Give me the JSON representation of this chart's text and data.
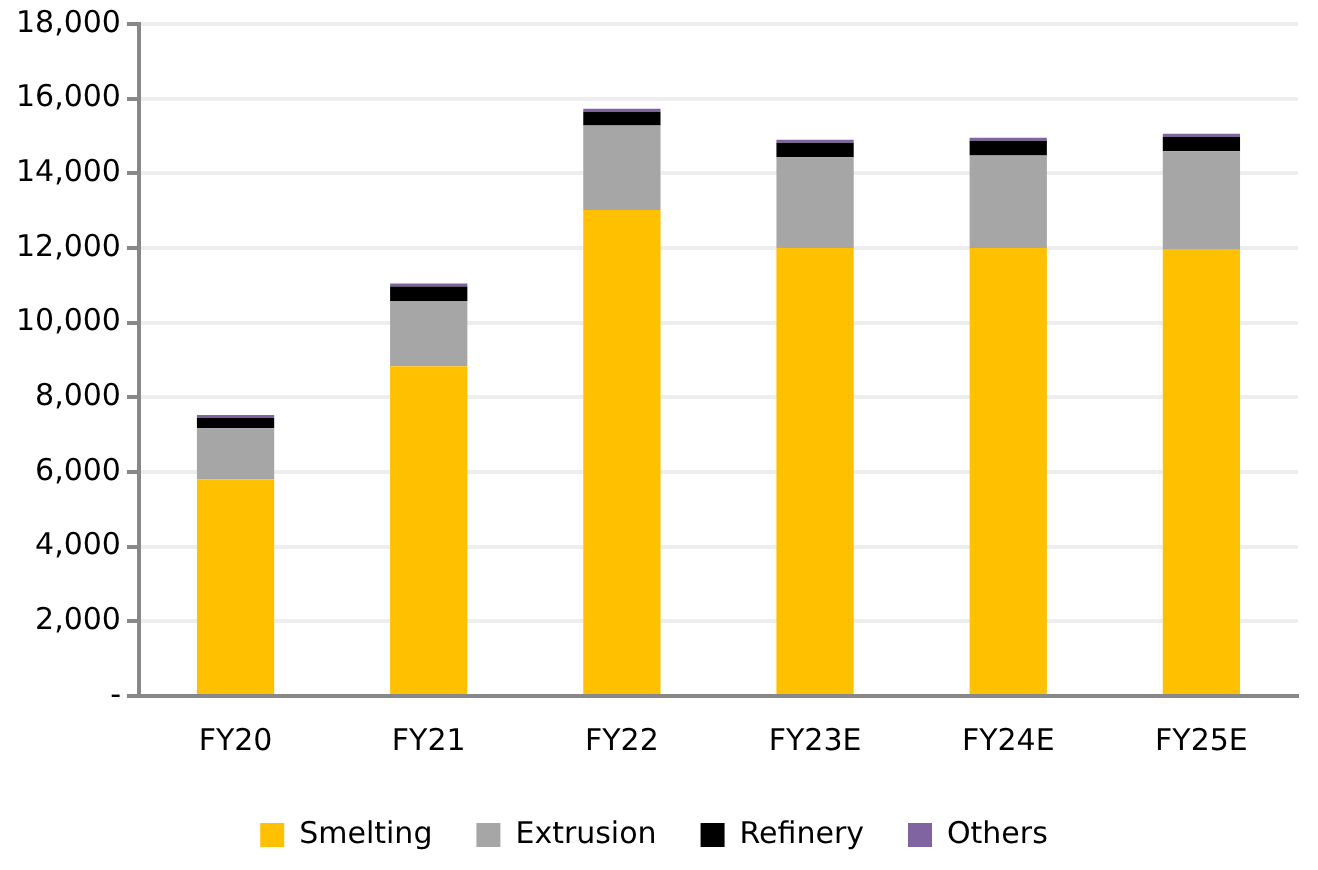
{
  "chart_data": {
    "type": "bar",
    "stacked": true,
    "categories": [
      "FY20",
      "FY21",
      "FY22",
      "FY23E",
      "FY24E",
      "FY25E"
    ],
    "series": [
      {
        "name": "Smelting",
        "color": "#ffc000",
        "values": [
          5800,
          8830,
          13020,
          12000,
          12000,
          11950
        ]
      },
      {
        "name": "Extrusion",
        "color": "#a6a6a6",
        "values": [
          1370,
          1750,
          2260,
          2430,
          2480,
          2640
        ]
      },
      {
        "name": "Refinery",
        "color": "#000000",
        "values": [
          280,
          390,
          370,
          390,
          390,
          390
        ]
      },
      {
        "name": "Others",
        "color": "#8064a2",
        "values": [
          80,
          80,
          80,
          80,
          80,
          80
        ]
      }
    ],
    "ylim": [
      0,
      18000
    ],
    "yticks": [
      {
        "value": 0,
        "label": "-"
      },
      {
        "value": 2000,
        "label": "2,000"
      },
      {
        "value": 4000,
        "label": "4,000"
      },
      {
        "value": 6000,
        "label": "6,000"
      },
      {
        "value": 8000,
        "label": "8,000"
      },
      {
        "value": 10000,
        "label": "10,000"
      },
      {
        "value": 12000,
        "label": "12,000"
      },
      {
        "value": 14000,
        "label": "14,000"
      },
      {
        "value": 16000,
        "label": "16,000"
      },
      {
        "value": 18000,
        "label": "18,000"
      }
    ],
    "grid": "y",
    "legend": "bottom"
  }
}
